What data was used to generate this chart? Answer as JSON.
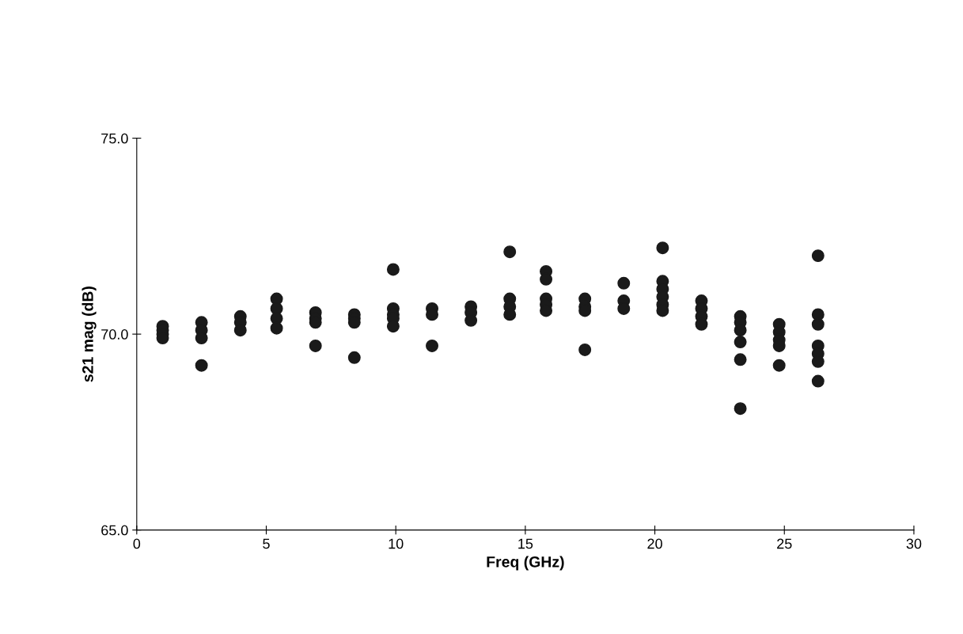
{
  "chart_data": {
    "type": "scatter",
    "xlabel": "Freq (GHz)",
    "ylabel": "s21 mag (dB)",
    "x": [
      1,
      1,
      1,
      1,
      2.5,
      2.5,
      2.5,
      2.5,
      4,
      4,
      4,
      5.4,
      5.4,
      5.4,
      5.4,
      6.9,
      6.9,
      6.9,
      6.9,
      8.4,
      8.4,
      8.4,
      8.4,
      9.9,
      9.9,
      9.9,
      9.9,
      9.9,
      11.4,
      11.4,
      11.4,
      12.9,
      12.9,
      12.9,
      14.4,
      14.4,
      14.4,
      14.4,
      15.8,
      15.8,
      15.8,
      15.8,
      15.8,
      17.3,
      17.3,
      17.3,
      17.3,
      18.8,
      18.8,
      18.8,
      20.3,
      20.3,
      20.3,
      20.3,
      20.3,
      20.3,
      21.8,
      21.8,
      21.8,
      21.8,
      23.3,
      23.3,
      23.3,
      23.3,
      23.3,
      23.3,
      24.8,
      24.8,
      24.8,
      24.8,
      24.8,
      26.3,
      26.3,
      26.3,
      26.3,
      26.3,
      26.3,
      26.3
    ],
    "series": [
      {
        "color": "#1a1a1a",
        "values": [
          70.2,
          70.1,
          70.0,
          69.9,
          70.3,
          70.1,
          69.9,
          69.2,
          70.45,
          70.3,
          70.1,
          70.9,
          70.65,
          70.4,
          70.15,
          70.55,
          70.4,
          70.3,
          69.7,
          70.5,
          70.4,
          70.3,
          69.4,
          71.65,
          70.65,
          70.5,
          70.4,
          70.2,
          70.65,
          70.5,
          69.7,
          70.7,
          70.55,
          70.35,
          72.1,
          70.9,
          70.7,
          70.5,
          71.6,
          71.4,
          70.9,
          70.75,
          70.6,
          70.9,
          70.7,
          70.6,
          69.6,
          71.3,
          70.85,
          70.65,
          72.2,
          71.35,
          71.15,
          70.95,
          70.75,
          70.6,
          70.85,
          70.65,
          70.45,
          70.25,
          70.45,
          70.3,
          70.1,
          69.8,
          69.35,
          68.1,
          70.25,
          70.05,
          69.85,
          69.7,
          69.2,
          72.0,
          70.5,
          70.25,
          69.7,
          69.5,
          69.3,
          68.8
        ]
      }
    ],
    "xlim": [
      0,
      30
    ],
    "xticks": [
      0,
      5,
      10,
      15,
      20,
      25,
      30
    ],
    "ylim": [
      65,
      75
    ],
    "yticks": [
      {
        "value": 65,
        "label": "65.0"
      },
      {
        "value": 70,
        "label": "70.0"
      },
      {
        "value": 75,
        "label": "75.0"
      }
    ],
    "marker": "circle",
    "grid": false,
    "legend": false
  }
}
